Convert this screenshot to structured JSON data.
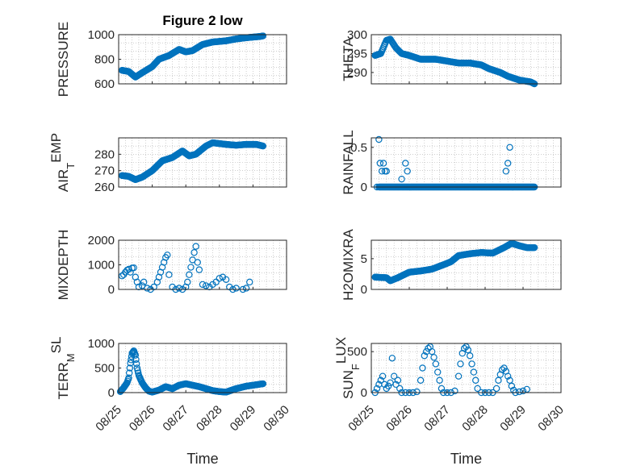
{
  "figure": {
    "title": "Figure 2 low"
  },
  "colors": {
    "marker": "#0072BD",
    "axis": "#262626",
    "grid": "#b0b0b0"
  },
  "chart_data": [
    {
      "type": "scatter",
      "id": "pressure",
      "ylabel": "PRESSURE",
      "yticks": [
        "600",
        "800",
        "1000"
      ],
      "ylim": [
        600,
        1000
      ],
      "yticks_values": [
        600,
        800,
        1000
      ],
      "xlim": [
        0,
        5
      ],
      "xticks": [
        "08/25",
        "08/26",
        "08/27",
        "08/28",
        "08/29",
        "08/30"
      ],
      "xlabel": "",
      "curve": [
        [
          0.1,
          710
        ],
        [
          0.3,
          700
        ],
        [
          0.5,
          655
        ],
        [
          0.7,
          690
        ],
        [
          1.0,
          740
        ],
        [
          1.2,
          800
        ],
        [
          1.5,
          830
        ],
        [
          1.8,
          880
        ],
        [
          2.0,
          860
        ],
        [
          2.2,
          870
        ],
        [
          2.5,
          920
        ],
        [
          2.8,
          940
        ],
        [
          3.2,
          950
        ],
        [
          3.5,
          965
        ],
        [
          3.8,
          975
        ],
        [
          4.2,
          985
        ],
        [
          4.3,
          990
        ]
      ],
      "points": []
    },
    {
      "type": "scatter",
      "id": "theta",
      "ylabel": "THETA",
      "yticks": [
        "290",
        "295",
        "300"
      ],
      "ylim": [
        287,
        300
      ],
      "yticks_values": [
        290,
        295,
        300
      ],
      "xlim": [
        0,
        5
      ],
      "xticks": [
        "08/25",
        "08/26",
        "08/27",
        "08/28",
        "08/29",
        "08/30"
      ],
      "xlabel": "",
      "curve": [
        [
          0.1,
          294.5
        ],
        [
          0.25,
          295
        ],
        [
          0.4,
          298.5
        ],
        [
          0.5,
          298.8
        ],
        [
          0.65,
          296.5
        ],
        [
          0.8,
          295
        ],
        [
          1.0,
          294.5
        ],
        [
          1.3,
          293.5
        ],
        [
          1.7,
          293.5
        ],
        [
          2.0,
          293
        ],
        [
          2.3,
          292.5
        ],
        [
          2.6,
          292.5
        ],
        [
          2.9,
          292
        ],
        [
          3.1,
          291
        ],
        [
          3.4,
          290
        ],
        [
          3.6,
          289
        ],
        [
          3.9,
          288
        ],
        [
          4.2,
          287.5
        ],
        [
          4.3,
          287
        ]
      ],
      "points": []
    },
    {
      "type": "scatter",
      "id": "air_temp",
      "ylabel_main": "AIR",
      "ylabel_sub": "T",
      "ylabel_rest": "EMP",
      "yticks": [
        "260",
        "270",
        "280"
      ],
      "ylim": [
        260,
        290
      ],
      "yticks_values": [
        260,
        270,
        280
      ],
      "xlim": [
        0,
        5
      ],
      "xticks": [
        "08/25",
        "08/26",
        "08/27",
        "08/28",
        "08/29",
        "08/30"
      ],
      "xlabel": "",
      "curve": [
        [
          0.1,
          267
        ],
        [
          0.3,
          266.5
        ],
        [
          0.5,
          264.5
        ],
        [
          0.7,
          266
        ],
        [
          1.0,
          270
        ],
        [
          1.3,
          276
        ],
        [
          1.6,
          278
        ],
        [
          1.9,
          282
        ],
        [
          2.1,
          279
        ],
        [
          2.3,
          280
        ],
        [
          2.6,
          285
        ],
        [
          2.8,
          287
        ],
        [
          3.2,
          286
        ],
        [
          3.5,
          285.5
        ],
        [
          3.8,
          286
        ],
        [
          4.1,
          286
        ],
        [
          4.3,
          285
        ]
      ],
      "points": []
    },
    {
      "type": "scatter",
      "id": "rainfall",
      "ylabel": "RAINFALL",
      "yticks": [
        "0",
        "0.5"
      ],
      "ylim": [
        0,
        0.62
      ],
      "yticks_values": [
        0,
        0.5
      ],
      "xlim": [
        0,
        5
      ],
      "xticks": [
        "08/25",
        "08/26",
        "08/27",
        "08/28",
        "08/29",
        "08/30"
      ],
      "xlabel": "",
      "curve": [
        [
          0.2,
          0
        ],
        [
          4.3,
          0
        ]
      ],
      "points": [
        [
          0.15,
          0
        ],
        [
          0.2,
          0.6
        ],
        [
          0.23,
          0.3
        ],
        [
          0.28,
          0.2
        ],
        [
          0.32,
          0.3
        ],
        [
          0.36,
          0.2
        ],
        [
          0.4,
          0.2
        ],
        [
          0.8,
          0.1
        ],
        [
          0.9,
          0.3
        ],
        [
          0.95,
          0.2
        ],
        [
          3.55,
          0.2
        ],
        [
          3.6,
          0.3
        ],
        [
          3.65,
          0.5
        ]
      ]
    },
    {
      "type": "scatter",
      "id": "mixdepth",
      "ylabel": "MIXDEPTH",
      "yticks": [
        "0",
        "1000",
        "2000"
      ],
      "ylim": [
        0,
        2000
      ],
      "yticks_values": [
        0,
        1000,
        2000
      ],
      "xlim": [
        0,
        5
      ],
      "xticks": [
        "08/25",
        "08/26",
        "08/27",
        "08/28",
        "08/29",
        "08/30"
      ],
      "xlabel": "",
      "curve": [],
      "points": [
        [
          0.1,
          550
        ],
        [
          0.15,
          600
        ],
        [
          0.2,
          700
        ],
        [
          0.25,
          780
        ],
        [
          0.3,
          820
        ],
        [
          0.35,
          700
        ],
        [
          0.4,
          870
        ],
        [
          0.45,
          880
        ],
        [
          0.5,
          500
        ],
        [
          0.55,
          300
        ],
        [
          0.6,
          100
        ],
        [
          0.7,
          150
        ],
        [
          0.75,
          300
        ],
        [
          0.85,
          50
        ],
        [
          0.95,
          0
        ],
        [
          1.05,
          100
        ],
        [
          1.15,
          300
        ],
        [
          1.2,
          500
        ],
        [
          1.25,
          700
        ],
        [
          1.3,
          900
        ],
        [
          1.35,
          1100
        ],
        [
          1.4,
          1300
        ],
        [
          1.45,
          1400
        ],
        [
          1.5,
          600
        ],
        [
          1.6,
          100
        ],
        [
          1.7,
          0
        ],
        [
          1.8,
          50
        ],
        [
          1.9,
          0
        ],
        [
          2.0,
          100
        ],
        [
          2.05,
          300
        ],
        [
          2.1,
          600
        ],
        [
          2.15,
          900
        ],
        [
          2.2,
          1200
        ],
        [
          2.25,
          1500
        ],
        [
          2.3,
          1750
        ],
        [
          2.35,
          1100
        ],
        [
          2.4,
          800
        ],
        [
          2.5,
          200
        ],
        [
          2.6,
          150
        ],
        [
          2.7,
          100
        ],
        [
          2.8,
          200
        ],
        [
          2.9,
          300
        ],
        [
          3.0,
          450
        ],
        [
          3.1,
          500
        ],
        [
          3.2,
          400
        ],
        [
          3.3,
          100
        ],
        [
          3.4,
          0
        ],
        [
          3.5,
          50
        ],
        [
          3.7,
          0
        ],
        [
          3.8,
          50
        ],
        [
          3.9,
          300
        ]
      ]
    },
    {
      "type": "scatter",
      "id": "h2omixra",
      "ylabel": "H2OMIXRA",
      "yticks": [
        "0",
        "5"
      ],
      "ylim": [
        0,
        8
      ],
      "yticks_values": [
        0,
        5
      ],
      "xlim": [
        0,
        5
      ],
      "xticks": [
        "08/25",
        "08/26",
        "08/27",
        "08/28",
        "08/29",
        "08/30"
      ],
      "xlabel": "",
      "curve": [
        [
          0.1,
          2
        ],
        [
          0.4,
          1.9
        ],
        [
          0.5,
          1.4
        ],
        [
          0.7,
          1.9
        ],
        [
          1.0,
          2.8
        ],
        [
          1.3,
          3.0
        ],
        [
          1.6,
          3.3
        ],
        [
          1.9,
          4.0
        ],
        [
          2.1,
          4.5
        ],
        [
          2.3,
          5.5
        ],
        [
          2.6,
          5.8
        ],
        [
          2.9,
          6.0
        ],
        [
          3.2,
          5.9
        ],
        [
          3.5,
          6.8
        ],
        [
          3.7,
          7.5
        ],
        [
          3.9,
          7.1
        ],
        [
          4.1,
          6.8
        ],
        [
          4.3,
          6.8
        ]
      ],
      "points": []
    },
    {
      "type": "scatter",
      "id": "terr_msl",
      "ylabel_main": "TERR",
      "ylabel_sub": "M",
      "ylabel_rest": "SL",
      "yticks": [
        "0",
        "500",
        "1000"
      ],
      "ylim": [
        0,
        1000
      ],
      "yticks_values": [
        0,
        500,
        1000
      ],
      "xlim": [
        0,
        5
      ],
      "xticks": [
        "08/25",
        "08/26",
        "08/27",
        "08/28",
        "08/29",
        "08/30"
      ],
      "xlabel": "Time",
      "curve": [
        [
          0.05,
          20
        ],
        [
          0.15,
          100
        ],
        [
          0.25,
          200
        ],
        [
          0.3,
          300
        ],
        [
          0.35,
          600
        ],
        [
          0.4,
          800
        ],
        [
          0.45,
          850
        ],
        [
          0.5,
          760
        ],
        [
          0.55,
          500
        ],
        [
          0.6,
          350
        ],
        [
          0.7,
          200
        ],
        [
          0.8,
          100
        ],
        [
          0.9,
          30
        ],
        [
          1.0,
          10
        ],
        [
          1.2,
          50
        ],
        [
          1.4,
          120
        ],
        [
          1.6,
          80
        ],
        [
          1.8,
          150
        ],
        [
          2.0,
          180
        ],
        [
          2.2,
          150
        ],
        [
          2.4,
          120
        ],
        [
          2.6,
          80
        ],
        [
          2.8,
          40
        ],
        [
          3.0,
          20
        ],
        [
          3.2,
          10
        ],
        [
          3.5,
          80
        ],
        [
          3.8,
          130
        ],
        [
          4.1,
          160
        ],
        [
          4.3,
          180
        ]
      ],
      "points": []
    },
    {
      "type": "scatter",
      "id": "sun_flux",
      "ylabel_main": "SUN",
      "ylabel_sub": "F",
      "ylabel_rest": "LUX",
      "yticks": [
        "0",
        "500"
      ],
      "ylim": [
        0,
        600
      ],
      "yticks_values": [
        0,
        500
      ],
      "xlim": [
        0,
        5
      ],
      "xticks": [
        "08/25",
        "08/26",
        "08/27",
        "08/28",
        "08/29",
        "08/30"
      ],
      "xlabel": "Time",
      "curve": [],
      "points": [
        [
          0.1,
          0
        ],
        [
          0.15,
          50
        ],
        [
          0.2,
          100
        ],
        [
          0.25,
          150
        ],
        [
          0.3,
          200
        ],
        [
          0.35,
          100
        ],
        [
          0.4,
          50
        ],
        [
          0.45,
          80
        ],
        [
          0.5,
          120
        ],
        [
          0.55,
          420
        ],
        [
          0.6,
          200
        ],
        [
          0.65,
          100
        ],
        [
          0.7,
          150
        ],
        [
          0.75,
          50
        ],
        [
          0.8,
          0
        ],
        [
          0.9,
          0
        ],
        [
          1.0,
          0
        ],
        [
          1.1,
          0
        ],
        [
          1.2,
          10
        ],
        [
          1.3,
          150
        ],
        [
          1.35,
          300
        ],
        [
          1.4,
          450
        ],
        [
          1.45,
          500
        ],
        [
          1.5,
          540
        ],
        [
          1.55,
          560
        ],
        [
          1.6,
          500
        ],
        [
          1.65,
          430
        ],
        [
          1.7,
          350
        ],
        [
          1.75,
          250
        ],
        [
          1.8,
          150
        ],
        [
          1.85,
          50
        ],
        [
          1.9,
          0
        ],
        [
          2.0,
          0
        ],
        [
          2.1,
          0
        ],
        [
          2.2,
          20
        ],
        [
          2.3,
          200
        ],
        [
          2.35,
          350
        ],
        [
          2.4,
          480
        ],
        [
          2.45,
          540
        ],
        [
          2.5,
          560
        ],
        [
          2.55,
          520
        ],
        [
          2.6,
          450
        ],
        [
          2.65,
          350
        ],
        [
          2.7,
          250
        ],
        [
          2.75,
          150
        ],
        [
          2.8,
          50
        ],
        [
          2.9,
          0
        ],
        [
          3.0,
          0
        ],
        [
          3.1,
          0
        ],
        [
          3.2,
          0
        ],
        [
          3.3,
          50
        ],
        [
          3.35,
          150
        ],
        [
          3.4,
          220
        ],
        [
          3.45,
          280
        ],
        [
          3.5,
          300
        ],
        [
          3.55,
          260
        ],
        [
          3.6,
          200
        ],
        [
          3.65,
          150
        ],
        [
          3.7,
          80
        ],
        [
          3.75,
          30
        ],
        [
          3.8,
          0
        ],
        [
          3.9,
          10
        ],
        [
          4.0,
          20
        ],
        [
          4.1,
          40
        ]
      ]
    }
  ]
}
